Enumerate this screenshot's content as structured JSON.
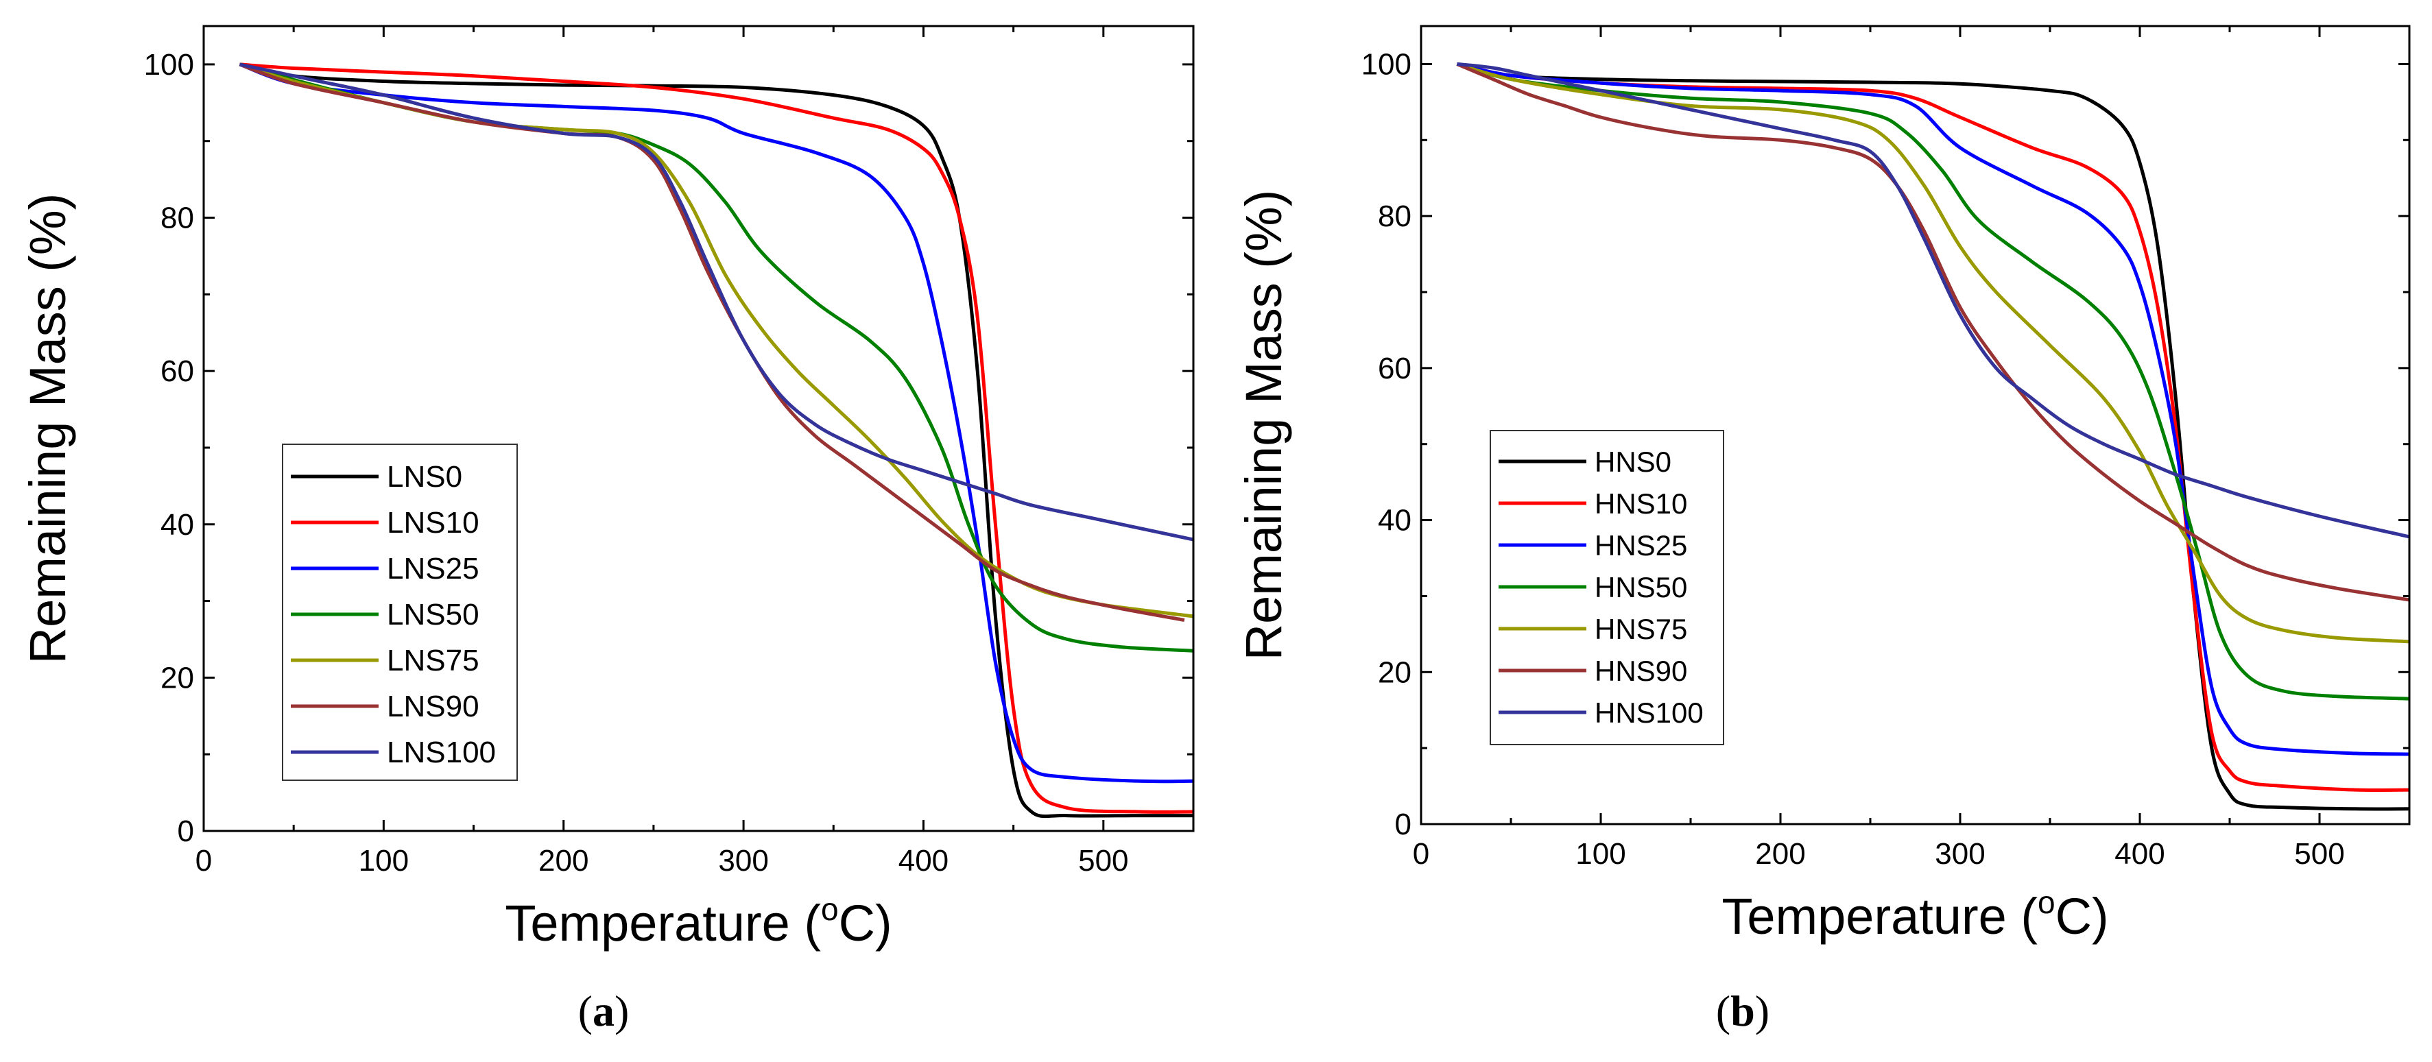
{
  "chart_data": [
    {
      "type": "line",
      "panel_label": "a",
      "xlabel": "Temperature (",
      "xlabel_unit": "C)",
      "xlabel_degree": "o",
      "ylabel": "Remaining Mass (%)",
      "xlim": [
        0,
        550
      ],
      "ylim": [
        0,
        105
      ],
      "xticks": [
        0,
        100,
        200,
        300,
        400,
        500
      ],
      "yticks": [
        0,
        20,
        40,
        60,
        80,
        100
      ],
      "legend_position": "lower-left",
      "series": [
        {
          "name": "LNS0",
          "color": "#000000",
          "x": [
            20,
            50,
            100,
            150,
            200,
            250,
            300,
            350,
            380,
            400,
            410,
            420,
            430,
            440,
            450,
            460,
            480,
            520,
            550
          ],
          "y": [
            100,
            98.5,
            97.8,
            97.5,
            97.3,
            97.2,
            97.0,
            96.0,
            94.5,
            92.0,
            88.0,
            80.0,
            60.0,
            28.0,
            8.0,
            2.5,
            2.0,
            2.0,
            2.0
          ]
        },
        {
          "name": "LNS10",
          "color": "#ff0000",
          "x": [
            20,
            50,
            100,
            150,
            200,
            250,
            300,
            350,
            380,
            400,
            410,
            420,
            430,
            440,
            450,
            460,
            480,
            520,
            550
          ],
          "y": [
            100,
            99.5,
            99.0,
            98.5,
            97.8,
            97.0,
            95.5,
            93.0,
            91.5,
            89.0,
            86.0,
            80.0,
            67.0,
            40.0,
            16.0,
            6.0,
            3.0,
            2.5,
            2.5
          ]
        },
        {
          "name": "LNS25",
          "color": "#0000ff",
          "x": [
            20,
            50,
            100,
            150,
            200,
            250,
            280,
            300,
            340,
            370,
            390,
            400,
            410,
            420,
            430,
            440,
            450,
            460,
            480,
            520,
            550
          ],
          "y": [
            100,
            97.5,
            96.0,
            95.0,
            94.5,
            94.0,
            93.0,
            91.0,
            88.5,
            85.5,
            80.0,
            74.0,
            64.0,
            52.0,
            38.0,
            22.0,
            12.0,
            8.0,
            7.0,
            6.5,
            6.5
          ]
        },
        {
          "name": "LNS50",
          "color": "#008000",
          "x": [
            20,
            50,
            100,
            150,
            200,
            230,
            250,
            270,
            290,
            310,
            340,
            370,
            390,
            410,
            425,
            440,
            460,
            480,
            510,
            550
          ],
          "y": [
            100,
            98.0,
            95.0,
            92.5,
            91.5,
            91.0,
            89.5,
            87.0,
            82.0,
            75.5,
            69.0,
            64.0,
            59.0,
            50.0,
            40.0,
            32.0,
            27.0,
            25.0,
            24.0,
            23.5
          ]
        },
        {
          "name": "LNS75",
          "color": "#999900",
          "x": [
            20,
            50,
            100,
            150,
            200,
            230,
            250,
            270,
            290,
            310,
            330,
            350,
            370,
            390,
            410,
            430,
            450,
            470,
            500,
            550
          ],
          "y": [
            100,
            97.8,
            95.0,
            92.5,
            91.5,
            91.0,
            88.5,
            82.0,
            72.5,
            65.5,
            60.0,
            55.5,
            51.0,
            46.0,
            40.5,
            36.0,
            33.0,
            31.0,
            29.5,
            28.0
          ]
        },
        {
          "name": "LNS90",
          "color": "#993333",
          "x": [
            20,
            50,
            100,
            150,
            200,
            230,
            250,
            265,
            280,
            300,
            320,
            340,
            360,
            380,
            400,
            420,
            440,
            460,
            480,
            510,
            545
          ],
          "y": [
            100,
            97.5,
            95.0,
            92.5,
            91.0,
            90.5,
            87.5,
            81.0,
            73.0,
            64.0,
            56.5,
            51.5,
            48.0,
            44.5,
            41.0,
            37.5,
            34.0,
            32.0,
            30.5,
            29.0,
            27.5
          ]
        },
        {
          "name": "LNS100",
          "color": "#333399",
          "x": [
            20,
            40,
            60,
            100,
            150,
            200,
            230,
            250,
            265,
            280,
            300,
            320,
            340,
            360,
            380,
            400,
            420,
            440,
            460,
            500,
            550
          ],
          "y": [
            100,
            99.0,
            98.0,
            96.0,
            93.0,
            91.0,
            90.5,
            88.0,
            82.0,
            74.0,
            64.0,
            57.0,
            53.0,
            50.5,
            48.5,
            47.0,
            45.5,
            44.0,
            42.5,
            40.5,
            38.0
          ]
        }
      ]
    },
    {
      "type": "line",
      "panel_label": "b",
      "xlabel": "Temperature (",
      "xlabel_unit": "C)",
      "xlabel_degree": "o",
      "ylabel": "Remaining Mass (%)",
      "xlim": [
        0,
        550
      ],
      "ylim": [
        0,
        105
      ],
      "xticks": [
        0,
        100,
        200,
        300,
        400,
        500
      ],
      "yticks": [
        0,
        20,
        40,
        60,
        80,
        100
      ],
      "legend_position": "middle-left",
      "series": [
        {
          "name": "HNS0",
          "color": "#000000",
          "x": [
            20,
            50,
            100,
            150,
            200,
            250,
            300,
            350,
            370,
            390,
            400,
            410,
            420,
            430,
            440,
            450,
            460,
            480,
            520,
            550
          ],
          "y": [
            100,
            98.5,
            98.0,
            97.8,
            97.7,
            97.6,
            97.4,
            96.5,
            95.5,
            92.0,
            87.0,
            76.0,
            56.0,
            30.0,
            10.0,
            4.0,
            2.5,
            2.2,
            2.0,
            2.0
          ]
        },
        {
          "name": "HNS10",
          "color": "#ff0000",
          "x": [
            20,
            50,
            100,
            150,
            200,
            250,
            275,
            300,
            340,
            370,
            390,
            400,
            410,
            420,
            430,
            440,
            450,
            460,
            480,
            520,
            550
          ],
          "y": [
            100,
            98.5,
            97.5,
            97.0,
            96.8,
            96.5,
            95.5,
            93.0,
            89.0,
            86.5,
            83.0,
            78.0,
            68.0,
            52.0,
            30.0,
            12.0,
            7.0,
            5.5,
            5.0,
            4.5,
            4.5
          ]
        },
        {
          "name": "HNS25",
          "color": "#0000ff",
          "x": [
            20,
            50,
            100,
            150,
            200,
            250,
            275,
            300,
            340,
            370,
            390,
            400,
            410,
            420,
            430,
            440,
            450,
            460,
            480,
            520,
            550
          ],
          "y": [
            100,
            98.5,
            97.5,
            96.8,
            96.5,
            96.0,
            94.5,
            89.0,
            84.0,
            80.5,
            76.0,
            71.0,
            62.0,
            50.0,
            33.0,
            18.0,
            12.5,
            10.5,
            9.8,
            9.3,
            9.2
          ]
        },
        {
          "name": "HNS50",
          "color": "#008000",
          "x": [
            20,
            50,
            100,
            150,
            200,
            250,
            270,
            290,
            310,
            340,
            370,
            390,
            405,
            420,
            432,
            445,
            460,
            480,
            510,
            550
          ],
          "y": [
            100,
            98.0,
            96.5,
            95.5,
            95.0,
            93.5,
            91.0,
            86.0,
            79.5,
            74.0,
            69.0,
            64.0,
            57.0,
            46.0,
            36.0,
            25.0,
            19.5,
            17.5,
            16.8,
            16.5
          ]
        },
        {
          "name": "HNS75",
          "color": "#999900",
          "x": [
            20,
            50,
            100,
            150,
            200,
            240,
            260,
            280,
            300,
            320,
            350,
            380,
            400,
            415,
            430,
            445,
            460,
            480,
            510,
            550
          ],
          "y": [
            100,
            98.0,
            96.0,
            94.5,
            94.0,
            92.5,
            90.0,
            84.0,
            76.0,
            70.0,
            63.0,
            56.0,
            49.0,
            42.0,
            36.0,
            30.0,
            27.0,
            25.5,
            24.5,
            24.0
          ]
        },
        {
          "name": "HNS90",
          "color": "#993333",
          "x": [
            20,
            40,
            60,
            80,
            100,
            130,
            160,
            200,
            230,
            250,
            265,
            280,
            300,
            320,
            340,
            360,
            380,
            400,
            420,
            440,
            460,
            480,
            510,
            550
          ],
          "y": [
            100,
            98.0,
            96.0,
            94.5,
            93.0,
            91.5,
            90.5,
            90.0,
            89.0,
            87.5,
            84.0,
            78.0,
            68.0,
            61.0,
            55.0,
            50.0,
            46.0,
            42.5,
            39.5,
            36.5,
            34.0,
            32.5,
            31.0,
            29.5
          ]
        },
        {
          "name": "HNS100",
          "color": "#333399",
          "x": [
            20,
            40,
            60,
            100,
            150,
            200,
            230,
            250,
            265,
            280,
            300,
            320,
            340,
            360,
            380,
            400,
            420,
            440,
            460,
            500,
            550
          ],
          "y": [
            100,
            99.5,
            98.5,
            96.5,
            94.0,
            91.5,
            90.0,
            88.5,
            84.0,
            77.0,
            67.0,
            60.0,
            56.0,
            52.5,
            50.0,
            48.0,
            46.0,
            44.5,
            43.0,
            40.5,
            37.8
          ]
        }
      ]
    }
  ]
}
